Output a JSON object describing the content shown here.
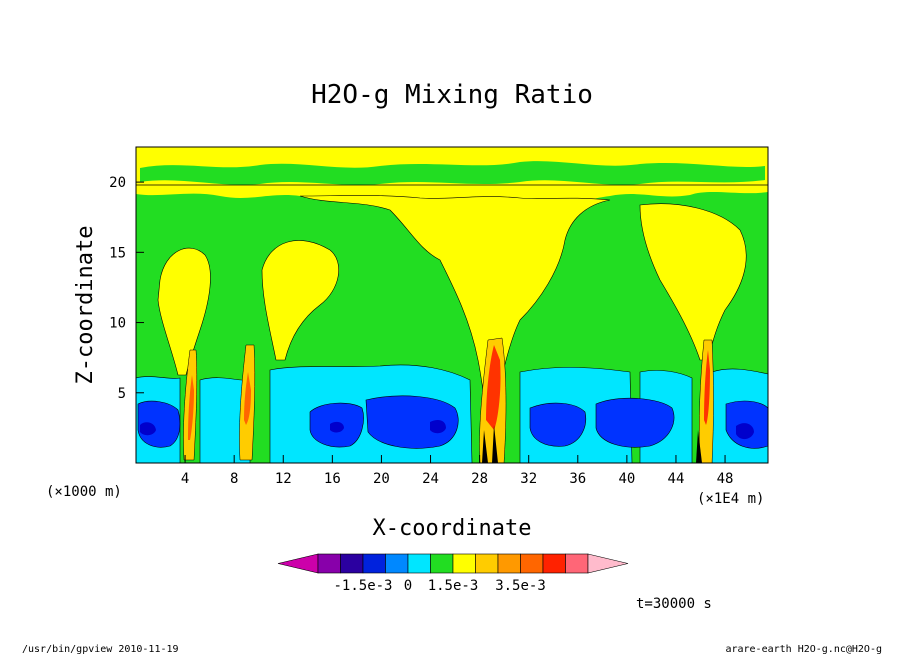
{
  "chart_data": {
    "type": "heatmap",
    "title": "H2O-g Mixing Ratio",
    "xlabel": "X-coordinate",
    "ylabel": "Z-coordinate",
    "x_unit_left": "(×1000 m)",
    "x_unit_right": "(×1E4 m)",
    "xlim": [
      0,
      51.5
    ],
    "ylim": [
      0,
      22.5
    ],
    "x_ticks": [
      "4",
      "8",
      "12",
      "16",
      "20",
      "24",
      "28",
      "32",
      "36",
      "40",
      "44",
      "48"
    ],
    "y_ticks": [
      "5",
      "10",
      "15",
      "20"
    ],
    "colorbar": {
      "labels": [
        "-1.5e-3",
        "0",
        "1.5e-3",
        "3.5e-3"
      ],
      "colors": [
        "#cc00aa",
        "#8800aa",
        "#2b00a0",
        "#0022dd",
        "#0088ff",
        "#00e6ff",
        "#22dd22",
        "#ffff00",
        "#ffcc00",
        "#ff9900",
        "#ff6600",
        "#ff2200",
        "#ff6677",
        "#ffbbcc"
      ]
    },
    "time_label": "t=30000 s",
    "colors": {
      "cyan": "#00e6ff",
      "blue": "#0033ff",
      "dark_blue": "#0000cc",
      "green": "#22dd22",
      "yellow": "#ffff00",
      "orange": "#ff8800",
      "red": "#ff3300"
    }
  },
  "footer": {
    "left": "/usr/bin/gpview   2010-11-19",
    "right": "arare-earth_H2O-g.nc@H2O-g"
  }
}
